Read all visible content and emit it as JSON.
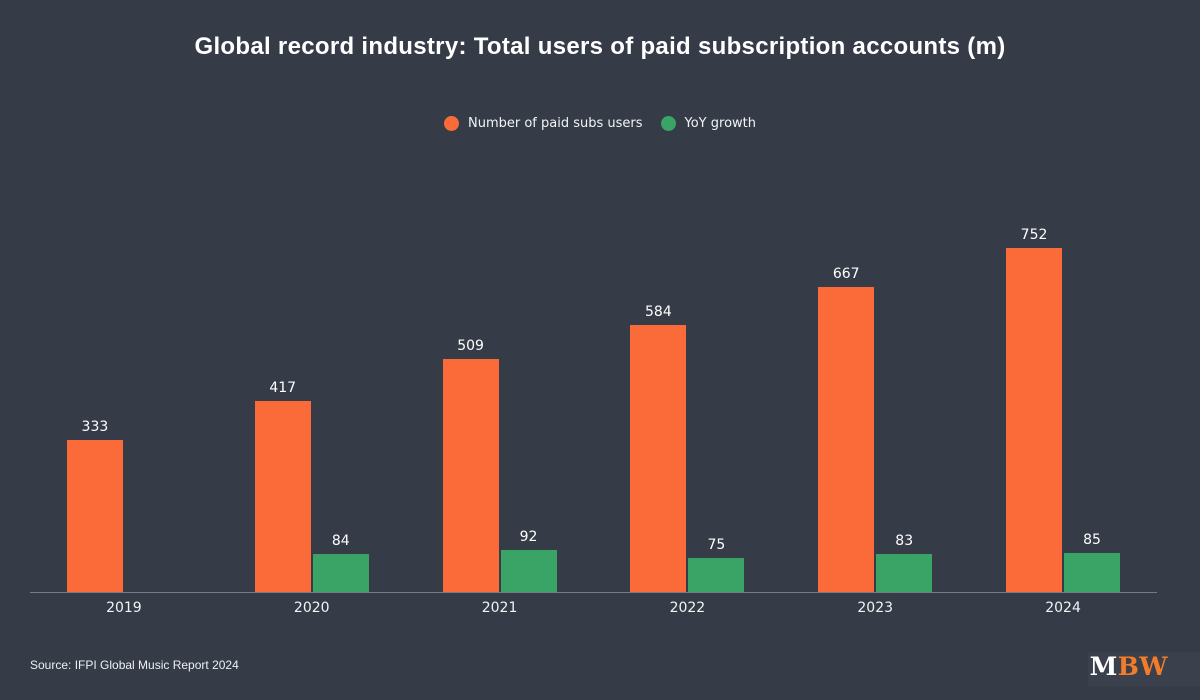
{
  "title": "Global record industry: Total users of paid subscription accounts (m)",
  "legend": {
    "items": [
      {
        "label": "Number of paid subs users",
        "color": "#fb6b3a"
      },
      {
        "label": "YoY growth",
        "color": "#3aa366"
      }
    ]
  },
  "footer": {
    "source": "Source: IFPI Global Music Report 2024",
    "logo": {
      "part1": "M",
      "part1_color": "#ffffff",
      "part2": "BW",
      "part2_color": "#f47c28"
    }
  },
  "colors": {
    "background": "#353b47",
    "axis_line": "#757c88",
    "text": "#ffffff",
    "orange": "#fb6b3a",
    "green": "#3aa366"
  },
  "chart_data": {
    "type": "bar",
    "title": "Global record industry: Total users of paid subscription accounts (m)",
    "categories": [
      "2019",
      "2020",
      "2021",
      "2022",
      "2023",
      "2024"
    ],
    "series": [
      {
        "name": "Number of paid subs users",
        "color": "#fb6b3a",
        "values": [
          333,
          417,
          509,
          584,
          667,
          752
        ]
      },
      {
        "name": "YoY growth",
        "color": "#3aa366",
        "values": [
          null,
          84,
          92,
          75,
          83,
          85
        ]
      }
    ],
    "xlabel": "",
    "ylabel": "",
    "grid": false,
    "legend_position": "top",
    "value_labels": true,
    "source": "Source: IFPI Global Music Report 2024"
  }
}
